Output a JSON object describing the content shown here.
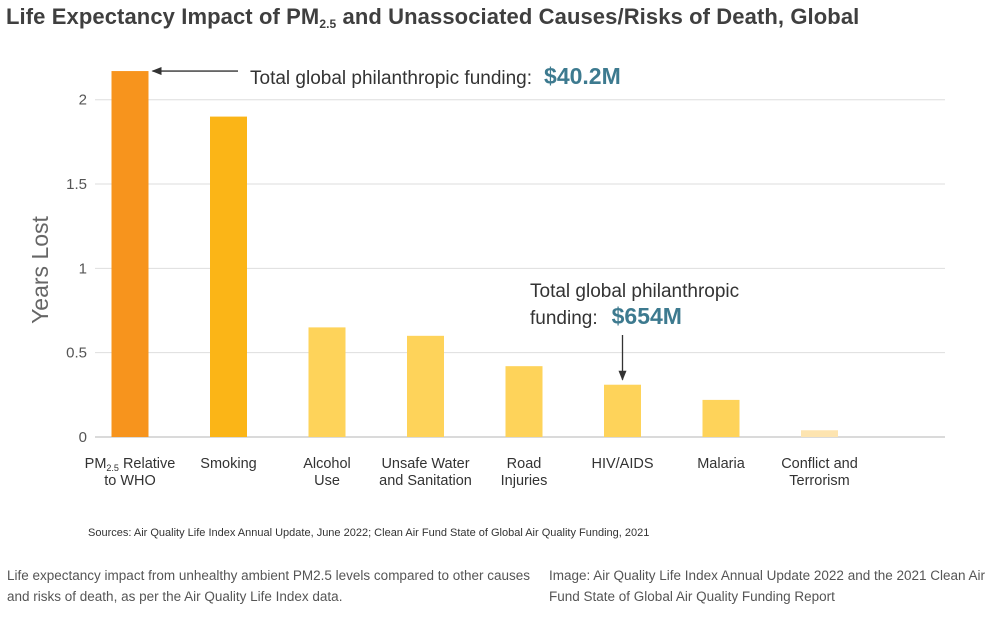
{
  "chart_data": {
    "type": "bar",
    "title_main": "Life Expectancy Impact of PM",
    "title_sub": "2.5",
    "title_rest": " and Unassociated Causes/Risks of Death, Global",
    "ylabel": "Years Lost",
    "ylim": [
      0,
      2.2
    ],
    "yticks": [
      0,
      0.5,
      1,
      1.5,
      2
    ],
    "ytick_labels": [
      "0",
      "0.5",
      "1",
      "1.5",
      "2"
    ],
    "categories": [
      [
        "PM",
        "2.5",
        " Relative",
        "to WHO"
      ],
      [
        "Smoking"
      ],
      [
        "Alcohol",
        "Use"
      ],
      [
        "Unsafe Water",
        "and Sanitation"
      ],
      [
        "Road",
        "Injuries"
      ],
      [
        "HIV/AIDS"
      ],
      [
        "Malaria"
      ],
      [
        "Conflict and",
        "Terrorism"
      ]
    ],
    "values": [
      2.17,
      1.9,
      0.65,
      0.6,
      0.42,
      0.31,
      0.22,
      0.04
    ],
    "colors": [
      "#f7941d",
      "#fbb517",
      "#fed35a",
      "#fed35a",
      "#fed35a",
      "#fed35a",
      "#fed35a",
      "#fde4b0"
    ],
    "annotations": [
      {
        "label": "Total global philanthropic funding:",
        "value": "$40.2M",
        "target_index": 0
      },
      {
        "line1": "Total global philanthropic",
        "line2": "funding:",
        "value": "$654M",
        "target_index": 5
      }
    ],
    "value_color": "#3d7a8f",
    "grid": true
  },
  "sources": "Sources: Air Quality Life Index Annual Update, June 2022; Clean Air Fund State of Global Air Quality Funding, 2021",
  "caption_left": "Life expectancy impact from unhealthy ambient PM2.5 levels compared to other causes and risks of death, as per the Air Quality Life Index data.",
  "caption_right": "Image: Air Quality Life Index Annual Update 2022 and the 2021 Clean Air Fund State of Global Air Quality Funding Report"
}
